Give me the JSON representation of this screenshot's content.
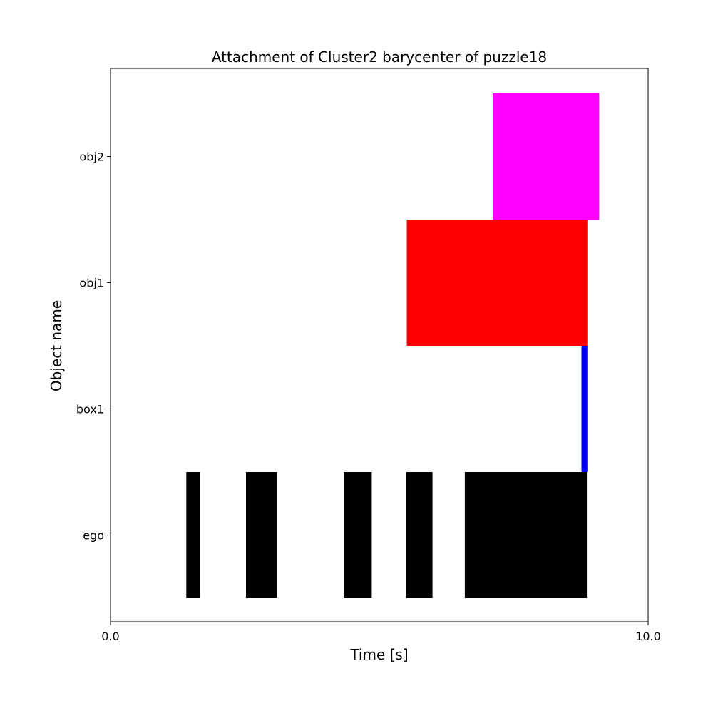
{
  "chart_data": {
    "type": "bar",
    "orientation": "horizontal-timeline",
    "title": "Attachment of Cluster2 barycenter of puzzle18",
    "xlabel": "Time [s]",
    "ylabel": "Object name",
    "xlim": [
      0.0,
      10.0
    ],
    "x_tick_labels": [
      "0.0",
      "10.0"
    ],
    "x_ticks": [
      0.0,
      10.0
    ],
    "categories": [
      "ego",
      "box1",
      "obj1",
      "obj2"
    ],
    "grid": false,
    "series": [
      {
        "category": "ego",
        "color": "#000000",
        "intervals": [
          [
            1.41,
            1.66
          ],
          [
            2.52,
            3.1
          ],
          [
            4.34,
            4.86
          ],
          [
            5.5,
            5.99
          ],
          [
            6.59,
            8.86
          ]
        ]
      },
      {
        "category": "box1",
        "color": "#0000ff",
        "intervals": [
          [
            8.76,
            8.87
          ]
        ]
      },
      {
        "category": "obj1",
        "color": "#ff0000",
        "intervals": [
          [
            5.51,
            8.87
          ]
        ]
      },
      {
        "category": "obj2",
        "color": "#ff00ff",
        "intervals": [
          [
            7.11,
            9.09
          ]
        ]
      }
    ]
  }
}
